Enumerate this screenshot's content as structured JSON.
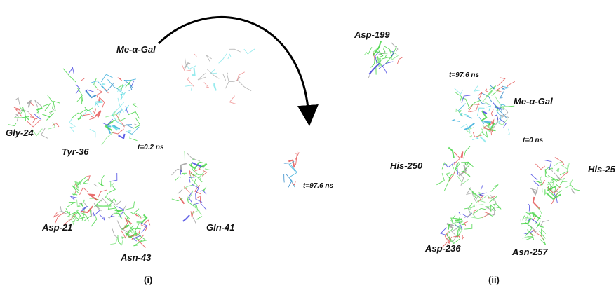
{
  "panel_i": {
    "caption": "(i)",
    "labels": [
      "Me-α-Gal",
      "Gly-24",
      "Tyr-36",
      "t=0.2 ns",
      "t=97.6 ns",
      "Asp-21",
      "Gln-41",
      "Asn-43"
    ]
  },
  "panel_ii": {
    "caption": "(ii)",
    "labels": [
      "Asp-199",
      "t=97.6 ns",
      "Me-α-Gal",
      "t=0 ns",
      "His-250",
      "His-25",
      "Asp-236",
      "Asn-257"
    ]
  }
}
